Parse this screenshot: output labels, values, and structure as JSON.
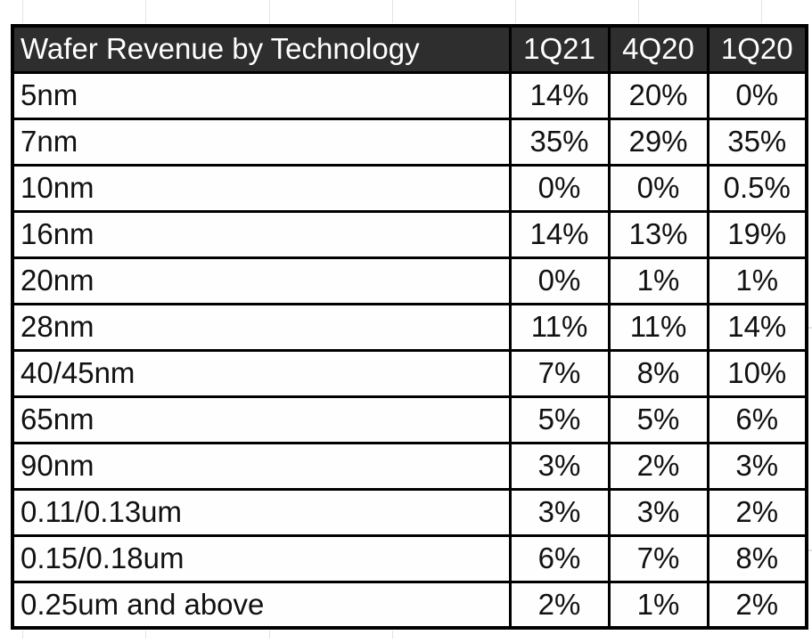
{
  "title": "Wafer Revenue by Technology",
  "colors": {
    "page_bg": "#ffffff",
    "header_bg": "#2e2e2e",
    "header_text": "#ffffff",
    "border": "#000000",
    "cell_bg": "#fefefe",
    "cell_text": "#111111",
    "artifact_line": "#e3e3e3"
  },
  "chart_data": {
    "type": "table",
    "title": "Wafer Revenue by Technology",
    "header": [
      "Wafer Revenue by Technology",
      "1Q21",
      "4Q20",
      "1Q20"
    ],
    "categories": [
      "5nm",
      "7nm",
      "10nm",
      "16nm",
      "20nm",
      "28nm",
      "40/45nm",
      "65nm",
      "90nm",
      "0.11/0.13um",
      "0.15/0.18um",
      "0.25um and above"
    ],
    "series": [
      {
        "name": "1Q21",
        "values": [
          "14%",
          "35%",
          "0%",
          "14%",
          "0%",
          "11%",
          "7%",
          "5%",
          "3%",
          "3%",
          "6%",
          "2%"
        ]
      },
      {
        "name": "4Q20",
        "values": [
          "20%",
          "29%",
          "0%",
          "13%",
          "1%",
          "11%",
          "8%",
          "5%",
          "2%",
          "3%",
          "7%",
          "1%"
        ]
      },
      {
        "name": "1Q20",
        "values": [
          "0%",
          "35%",
          "0.5%",
          "19%",
          "1%",
          "14%",
          "10%",
          "6%",
          "3%",
          "2%",
          "8%",
          "2%"
        ]
      }
    ],
    "layout": {
      "grid": "full black cell borders",
      "header_style": "dark bar, white text",
      "value_alignment": "center",
      "label_alignment": "left"
    }
  }
}
